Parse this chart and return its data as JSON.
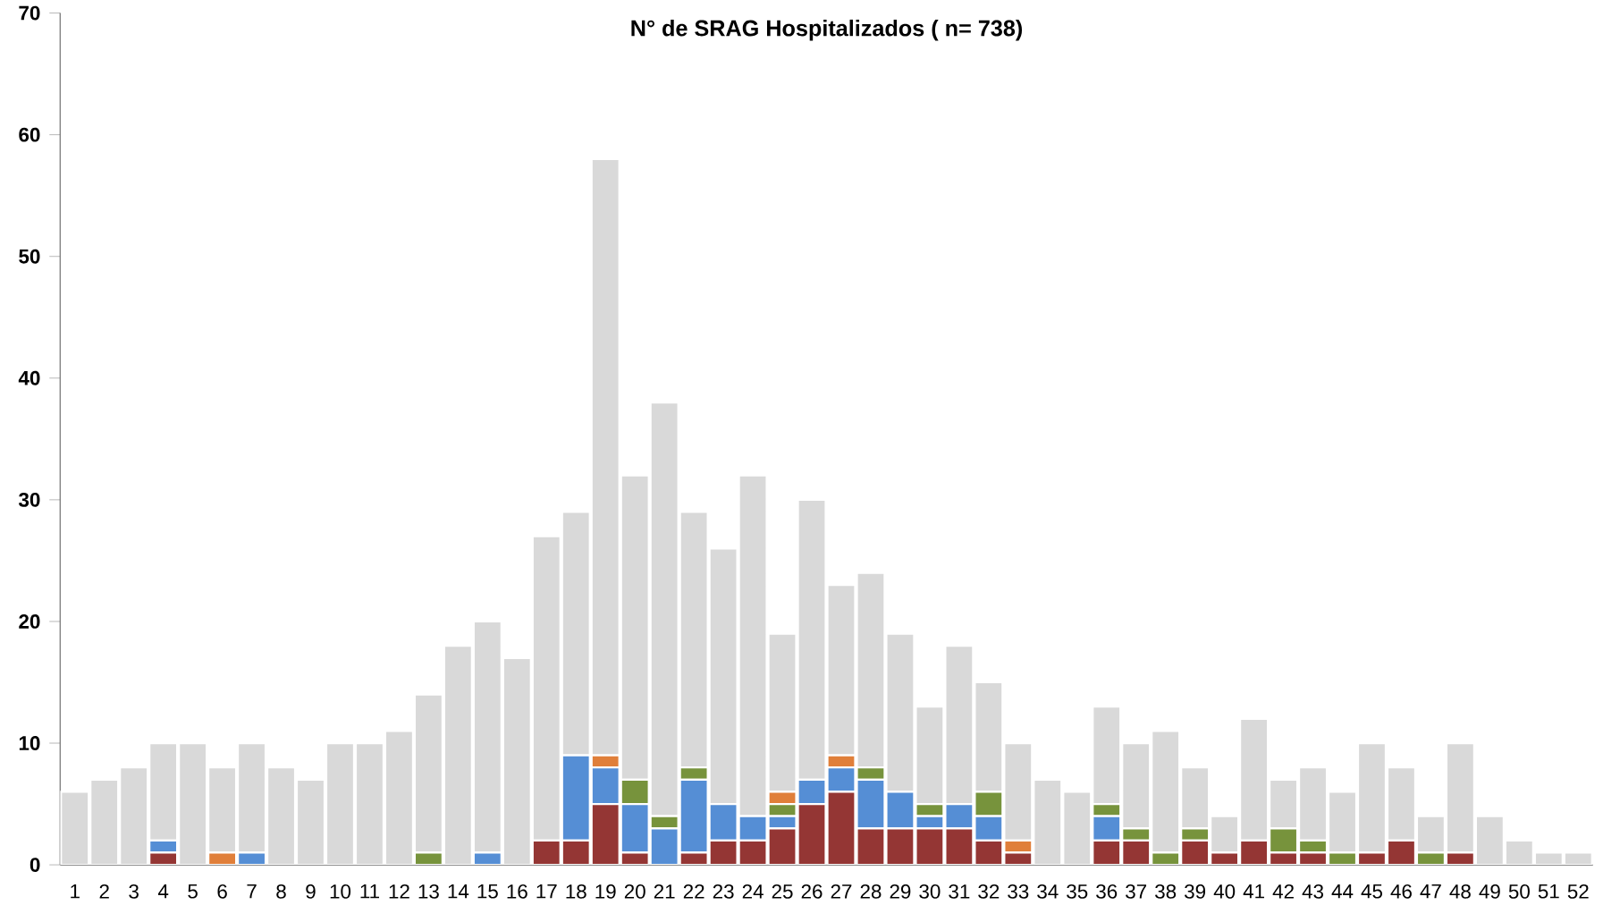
{
  "chart_data": {
    "type": "bar",
    "title": "N° de SRAG Hospitalizados ( n= 738)",
    "stacked": true,
    "categories": [
      "1",
      "2",
      "3",
      "4",
      "5",
      "6",
      "7",
      "8",
      "9",
      "10",
      "11",
      "12",
      "13",
      "14",
      "15",
      "16",
      "17",
      "18",
      "19",
      "20",
      "21",
      "22",
      "23",
      "24",
      "25",
      "26",
      "27",
      "28",
      "29",
      "30",
      "31",
      "32",
      "33",
      "34",
      "35",
      "36",
      "37",
      "38",
      "39",
      "40",
      "41",
      "42",
      "43",
      "44",
      "45",
      "46",
      "47",
      "48",
      "49",
      "50",
      "51",
      "52"
    ],
    "series": [
      {
        "color": "#943634",
        "values": [
          0,
          0,
          0,
          1,
          0,
          0,
          0,
          0,
          0,
          0,
          0,
          0,
          0,
          0,
          0,
          0,
          2,
          2,
          5,
          1,
          0,
          1,
          2,
          2,
          3,
          5,
          6,
          3,
          3,
          3,
          3,
          2,
          1,
          0,
          0,
          2,
          2,
          0,
          2,
          1,
          2,
          1,
          1,
          0,
          1,
          2,
          0,
          1,
          0,
          0,
          0,
          0
        ]
      },
      {
        "color": "#558ed5",
        "values": [
          0,
          0,
          0,
          1,
          0,
          0,
          1,
          0,
          0,
          0,
          0,
          0,
          0,
          0,
          1,
          0,
          0,
          7,
          3,
          4,
          3,
          6,
          3,
          2,
          1,
          2,
          2,
          4,
          3,
          1,
          2,
          2,
          0,
          0,
          0,
          2,
          0,
          0,
          0,
          0,
          0,
          0,
          0,
          0,
          0,
          0,
          0,
          0,
          0,
          0,
          0,
          0
        ]
      },
      {
        "color": "#77933c",
        "values": [
          0,
          0,
          0,
          0,
          0,
          0,
          0,
          0,
          0,
          0,
          0,
          0,
          1,
          0,
          0,
          0,
          0,
          0,
          0,
          2,
          1,
          1,
          0,
          0,
          1,
          0,
          0,
          1,
          0,
          1,
          0,
          2,
          0,
          0,
          0,
          1,
          1,
          1,
          1,
          0,
          0,
          2,
          1,
          1,
          0,
          0,
          1,
          0,
          0,
          0,
          0,
          0
        ]
      },
      {
        "color": "#e07f3a",
        "values": [
          0,
          0,
          0,
          0,
          0,
          1,
          0,
          0,
          0,
          0,
          0,
          0,
          0,
          0,
          0,
          0,
          0,
          0,
          1,
          0,
          0,
          0,
          0,
          0,
          1,
          0,
          1,
          0,
          0,
          0,
          0,
          0,
          1,
          0,
          0,
          0,
          0,
          0,
          0,
          0,
          0,
          0,
          0,
          0,
          0,
          0,
          0,
          0,
          0,
          0,
          0,
          0
        ]
      },
      {
        "color": "#d9d9d9",
        "values": [
          6,
          7,
          8,
          8,
          10,
          7,
          9,
          8,
          7,
          10,
          10,
          11,
          13,
          18,
          19,
          17,
          25,
          20,
          49,
          25,
          34,
          21,
          21,
          28,
          13,
          23,
          14,
          16,
          13,
          8,
          13,
          9,
          8,
          7,
          6,
          8,
          7,
          10,
          5,
          3,
          10,
          4,
          6,
          5,
          9,
          6,
          3,
          9,
          4,
          2,
          1,
          1
        ]
      }
    ],
    "ylim": [
      0,
      70
    ],
    "yticks": [
      0,
      10,
      20,
      30,
      40,
      50,
      60,
      70
    ]
  }
}
